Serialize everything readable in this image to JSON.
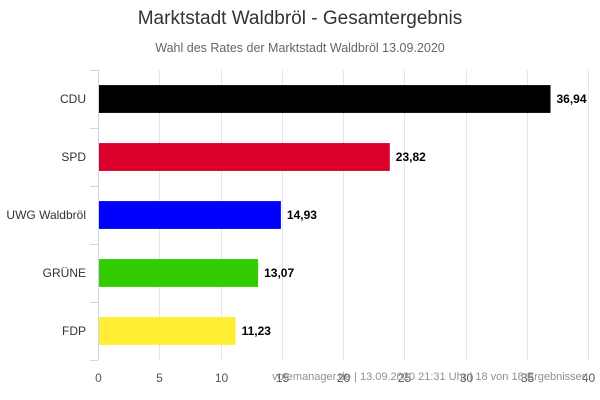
{
  "chart_data": {
    "type": "bar",
    "orientation": "horizontal",
    "title": "Marktstadt Waldbröl - Gesamtergebnis",
    "subtitle": "Wahl des Rates der Marktstadt Waldbröl 13.09.2020",
    "categories": [
      "CDU",
      "SPD",
      "UWG Waldbröl",
      "GRÜNE",
      "FDP"
    ],
    "values": [
      36.94,
      23.82,
      14.93,
      13.07,
      11.23
    ],
    "value_labels": [
      "36,94",
      "23,82",
      "14,93",
      "13,07",
      "11,23"
    ],
    "colors": [
      "#000000",
      "#d9002b",
      "#0000ff",
      "#33cc00",
      "#ffee33"
    ],
    "xlim": [
      0,
      40
    ],
    "xticks": [
      0,
      5,
      10,
      15,
      20,
      25,
      30,
      35,
      40
    ],
    "xlabel": "",
    "ylabel": "",
    "grid": "vertical",
    "legend": "none",
    "credits": "votemanager.de | 13.09.2020 21:31 Uhr | 18 von 18 Ergebnissen"
  }
}
